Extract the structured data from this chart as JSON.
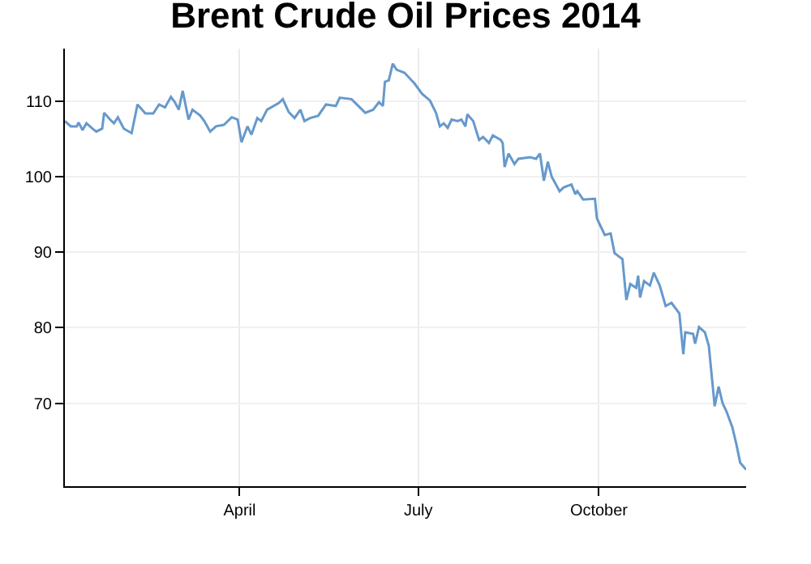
{
  "chart_data": {
    "type": "line",
    "title": "Brent Crude Oil Prices 2014",
    "x": [
      "2014-01-02",
      "2014-01-05",
      "2014-01-08",
      "2014-01-09",
      "2014-01-11",
      "2014-01-13",
      "2014-01-16",
      "2014-01-18",
      "2014-01-21",
      "2014-01-22",
      "2014-01-25",
      "2014-01-27",
      "2014-01-29",
      "2014-02-01",
      "2014-02-05",
      "2014-02-08",
      "2014-02-12",
      "2014-02-16",
      "2014-02-19",
      "2014-02-22",
      "2014-02-25",
      "2014-02-27",
      "2014-03-01",
      "2014-03-03",
      "2014-03-06",
      "2014-03-08",
      "2014-03-12",
      "2014-03-14",
      "2014-03-17",
      "2014-03-20",
      "2014-03-24",
      "2014-03-28",
      "2014-03-31",
      "2014-04-02",
      "2014-04-05",
      "2014-04-07",
      "2014-04-10",
      "2014-04-12",
      "2014-04-15",
      "2014-04-21",
      "2014-04-23",
      "2014-04-26",
      "2014-04-29",
      "2014-05-02",
      "2014-05-04",
      "2014-05-07",
      "2014-05-11",
      "2014-05-15",
      "2014-05-20",
      "2014-05-22",
      "2014-05-28",
      "2014-06-04",
      "2014-06-08",
      "2014-06-11",
      "2014-06-13",
      "2014-06-14",
      "2014-06-16",
      "2014-06-18",
      "2014-06-20",
      "2014-06-24",
      "2014-06-29",
      "2014-07-03",
      "2014-07-07",
      "2014-07-10",
      "2014-07-12",
      "2014-07-14",
      "2014-07-16",
      "2014-07-18",
      "2014-07-21",
      "2014-07-23",
      "2014-07-25",
      "2014-07-26",
      "2014-07-29",
      "2014-08-01",
      "2014-08-03",
      "2014-08-06",
      "2014-08-08",
      "2014-08-12",
      "2014-08-13",
      "2014-08-14",
      "2014-08-16",
      "2014-08-19",
      "2014-08-21",
      "2014-08-27",
      "2014-08-30",
      "2014-09-01",
      "2014-09-03",
      "2014-09-05",
      "2014-09-07",
      "2014-09-11",
      "2014-09-13",
      "2014-09-17",
      "2014-09-19",
      "2014-09-20",
      "2014-09-23",
      "2014-09-29",
      "2014-09-30",
      "2014-10-04",
      "2014-10-07",
      "2014-10-09",
      "2014-10-13",
      "2014-10-15",
      "2014-10-17",
      "2014-10-20",
      "2014-10-21",
      "2014-10-22",
      "2014-10-24",
      "2014-10-27",
      "2014-10-29",
      "2014-11-01",
      "2014-11-04",
      "2014-11-07",
      "2014-11-11",
      "2014-11-13",
      "2014-11-14",
      "2014-11-18",
      "2014-11-19",
      "2014-11-21",
      "2014-11-24",
      "2014-11-26",
      "2014-11-29",
      "2014-12-01",
      "2014-12-03",
      "2014-12-05",
      "2014-12-08",
      "2014-12-10",
      "2014-12-12",
      "2014-12-15"
    ],
    "series": [
      {
        "color": "#6699cc",
        "values": [
          107.4,
          106.7,
          106.7,
          107.2,
          106.2,
          107.1,
          106.4,
          106.0,
          106.4,
          108.5,
          107.6,
          107.1,
          107.9,
          106.4,
          105.8,
          109.6,
          108.4,
          108.4,
          109.6,
          109.2,
          110.6,
          109.9,
          108.9,
          111.4,
          107.6,
          108.9,
          108.1,
          107.4,
          106.0,
          106.7,
          106.9,
          107.9,
          107.6,
          104.6,
          106.7,
          105.6,
          107.8,
          107.4,
          108.9,
          109.8,
          110.3,
          108.6,
          107.8,
          108.9,
          107.4,
          107.8,
          108.1,
          109.6,
          109.4,
          110.5,
          110.3,
          108.5,
          108.9,
          109.9,
          109.4,
          112.6,
          112.8,
          115.0,
          114.2,
          113.8,
          112.4,
          111.0,
          110.1,
          108.5,
          106.7,
          107.1,
          106.5,
          107.6,
          107.4,
          107.6,
          106.7,
          108.3,
          107.4,
          104.9,
          105.3,
          104.5,
          105.5,
          104.9,
          104.5,
          101.3,
          103.1,
          101.7,
          102.4,
          102.6,
          102.4,
          103.1,
          99.5,
          102.0,
          100.0,
          98.1,
          98.6,
          99.0,
          97.7,
          98.1,
          97.0,
          97.1,
          94.5,
          92.3,
          92.5,
          89.9,
          89.1,
          83.7,
          85.8,
          85.3,
          86.9,
          84.0,
          86.2,
          85.6,
          87.3,
          85.6,
          82.9,
          83.3,
          81.9,
          76.5,
          79.4,
          79.2,
          77.9,
          80.1,
          79.4,
          77.6,
          69.6,
          72.2,
          70.0,
          68.9,
          66.8,
          64.6,
          62.1,
          61.2
        ]
      }
    ],
    "xlim": [
      "2014-01-02",
      "2014-12-15"
    ],
    "xticks": [
      {
        "value": "2014-04-01",
        "label": "April"
      },
      {
        "value": "2014-07-01",
        "label": "July"
      },
      {
        "value": "2014-10-01",
        "label": "October"
      }
    ],
    "ylim": [
      59,
      117
    ],
    "yticks": [
      70,
      80,
      90,
      100,
      110
    ],
    "grid": true,
    "marker": "none",
    "line_style": "solid"
  }
}
